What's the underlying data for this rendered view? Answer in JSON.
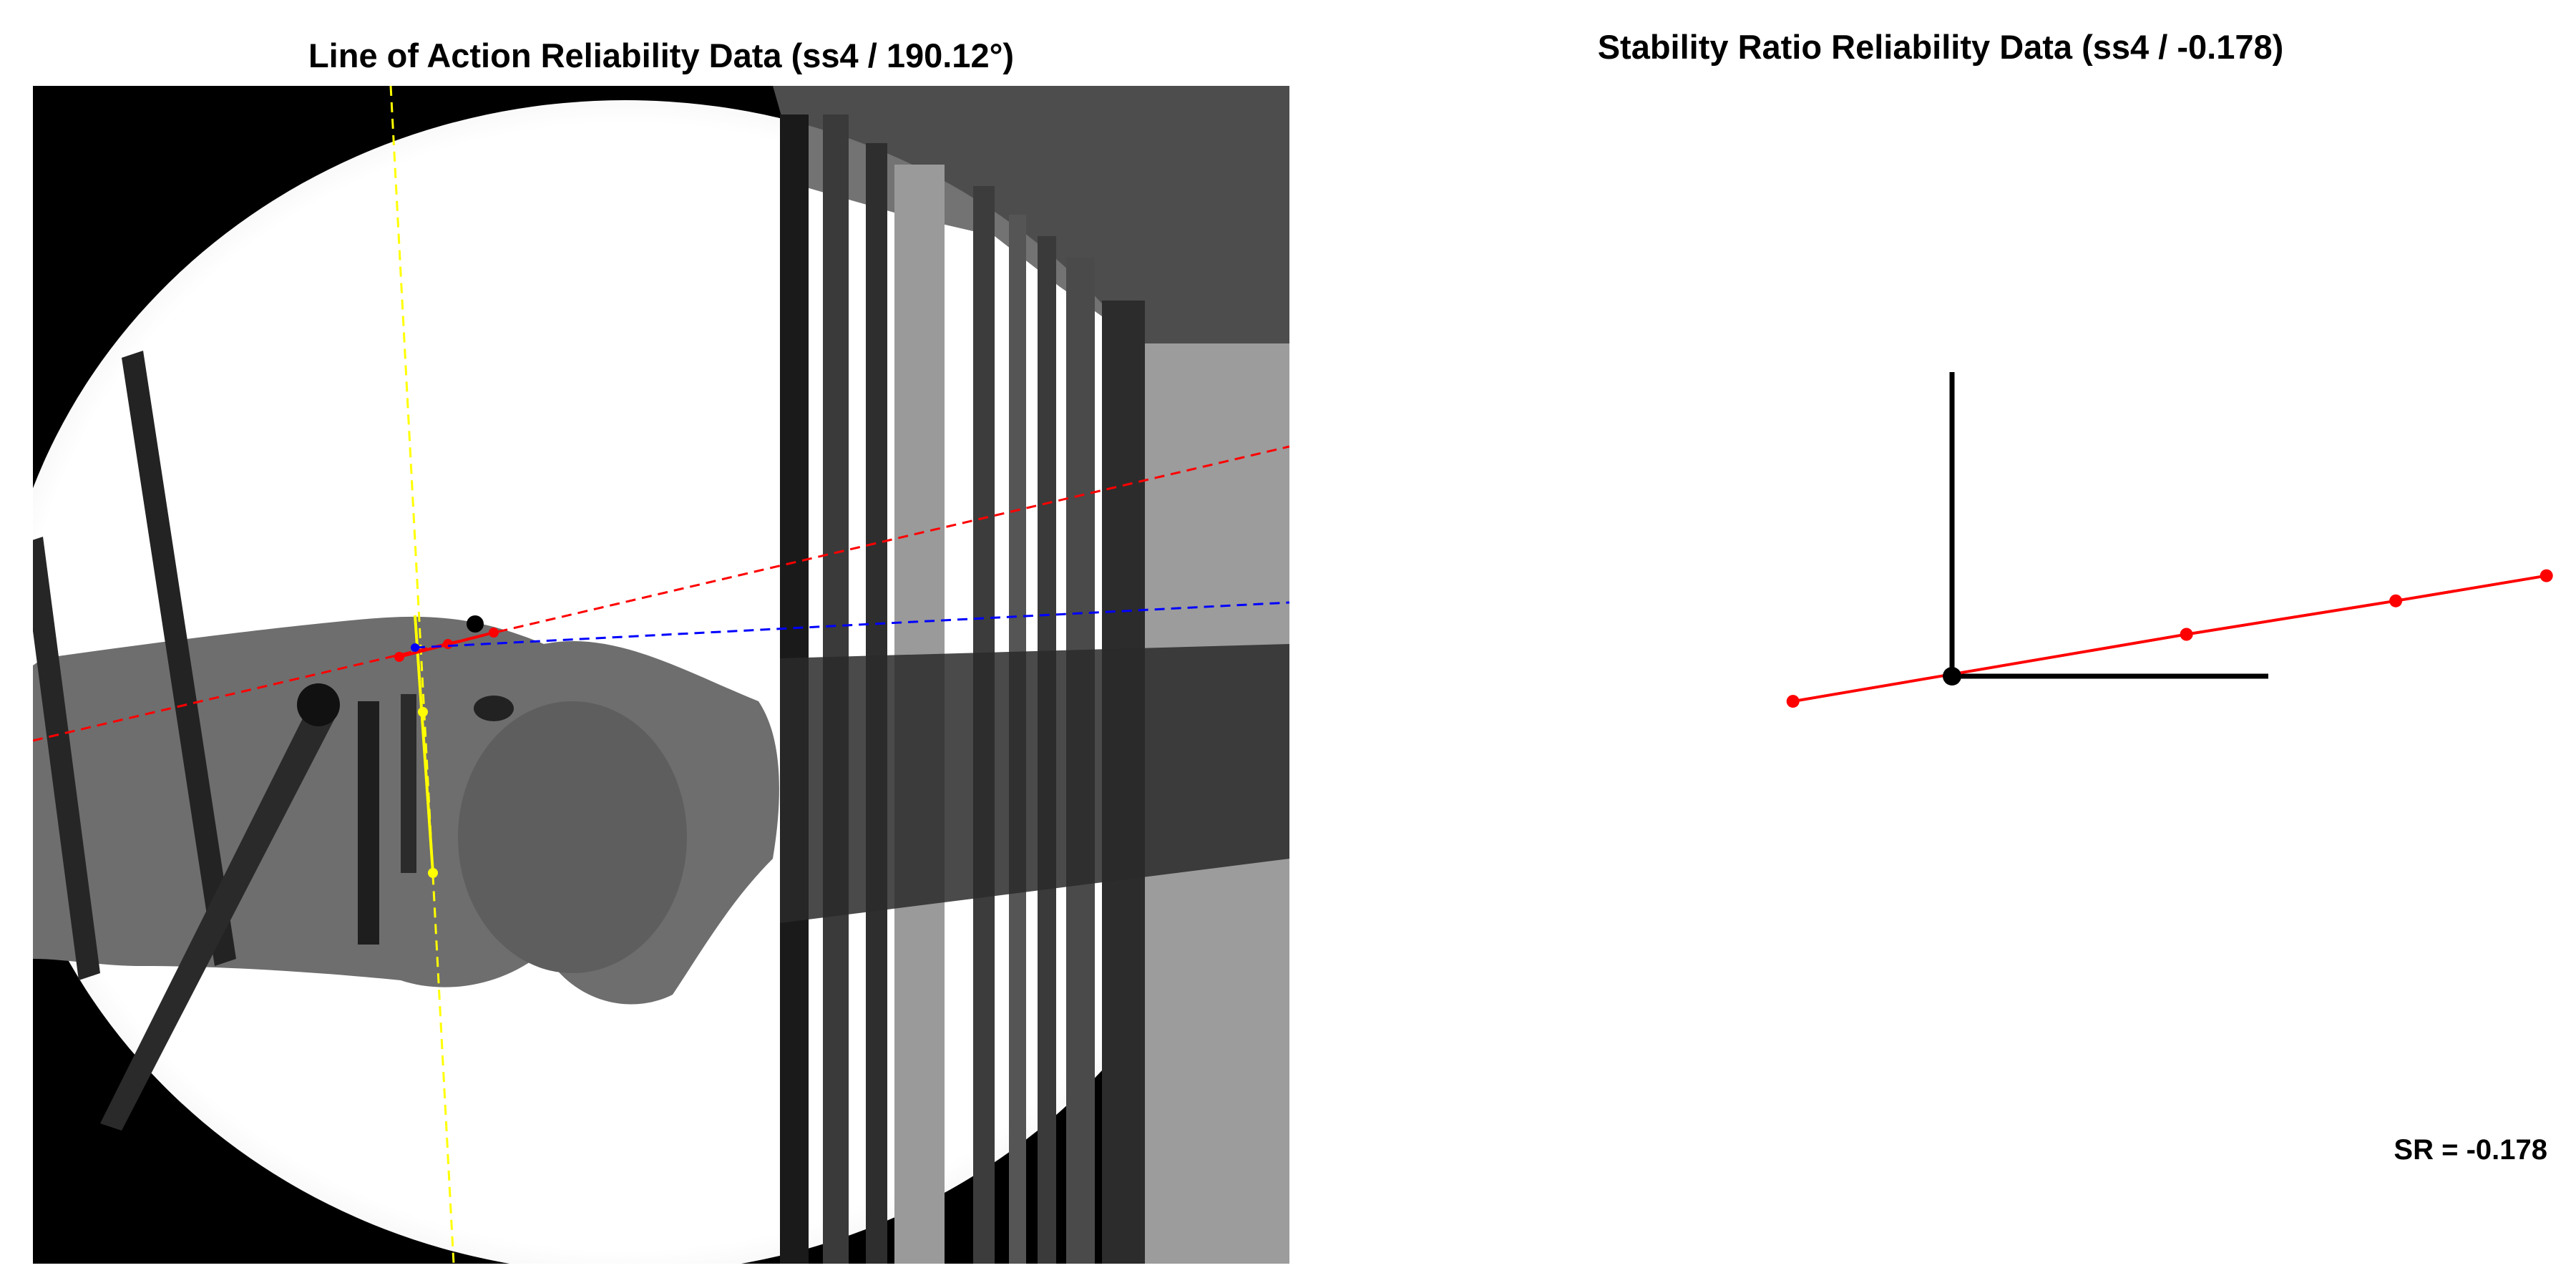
{
  "left_panel": {
    "title": "Line of Action Reliability Data (ss4 / 190.12°)",
    "image_description_colors": {
      "background": "#000000",
      "field": "#ffffff",
      "lines": {
        "yellow": "#ffff00",
        "red": "#ff0000",
        "blue": "#0000ff"
      }
    }
  },
  "right_panel": {
    "title": "Stability Ratio Reliability Data (ss4 / -0.178)",
    "annotation": "SR = -0.178"
  },
  "chart_data": [
    {
      "type": "image-overlay",
      "title": "Line of Action Reliability Data (ss4 / 190.12°)",
      "overlays": [
        {
          "color": "#ffff00",
          "style": "dashed",
          "points": 2
        },
        {
          "color": "#ff0000",
          "style": "dashed",
          "points": 3
        },
        {
          "color": "#0000ff",
          "style": "dashed",
          "points": 1
        }
      ]
    },
    {
      "type": "scatter",
      "title": "Stability Ratio Reliability Data (ss4 / -0.178)",
      "origin": [
        0,
        0
      ],
      "axes_color": "#000000",
      "series": [
        {
          "color": "#ff0000",
          "style": "line",
          "points": [
            [
              -0.19,
              -0.03
            ],
            [
              0.28,
              0.05
            ],
            [
              0.53,
              0.09
            ],
            [
              0.71,
              0.12
            ]
          ]
        }
      ],
      "origin_point_color": "#000000",
      "annotation": "SR = -0.178"
    }
  ]
}
